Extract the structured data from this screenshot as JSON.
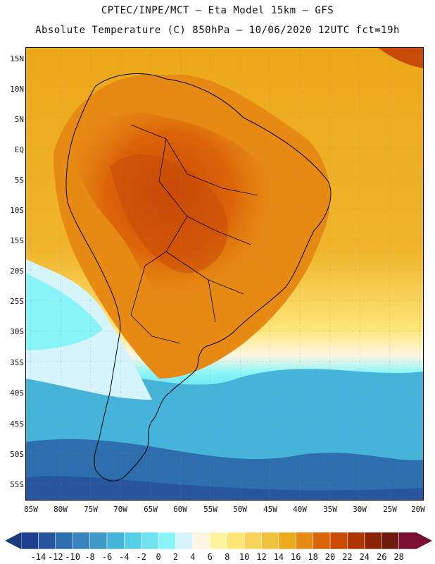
{
  "title_line1": "CPTEC/INPE/MCT –  Eta Model 15km – GFS",
  "title_line2": "Absolute Temperature (C) 850hPa – 10/06/2020 12UTC fct=19h",
  "lat_labels": [
    "15N",
    "10N",
    "5N",
    "EQ",
    "5S",
    "10S",
    "15S",
    "20S",
    "25S",
    "30S",
    "35S",
    "40S",
    "45S",
    "50S",
    "55S"
  ],
  "lon_labels": [
    "85W",
    "80W",
    "75W",
    "70W",
    "65W",
    "60W",
    "55W",
    "50W",
    "45W",
    "40W",
    "35W",
    "30W",
    "25W",
    "20W"
  ],
  "colorbar": {
    "labels": [
      "-14",
      "-12",
      "-10",
      "-8",
      "-6",
      "-4",
      "-2",
      "0",
      "2",
      "4",
      "6",
      "8",
      "10",
      "12",
      "14",
      "16",
      "18",
      "20",
      "22",
      "24",
      "26",
      "28"
    ],
    "colors": [
      "#1f3f8f",
      "#27569f",
      "#2d6eae",
      "#3884bc",
      "#3e9ac8",
      "#46b4d8",
      "#55cfe6",
      "#6fe4f0",
      "#88f4f8",
      "#d6f4fb",
      "#fff6e2",
      "#fff39c",
      "#fde676",
      "#f8d55a",
      "#f1c23b",
      "#ecab1e",
      "#e68a14",
      "#dc6408",
      "#c94a07",
      "#b03505",
      "#8c2305",
      "#6e1a0e",
      "#7a0e33"
    ]
  }
}
